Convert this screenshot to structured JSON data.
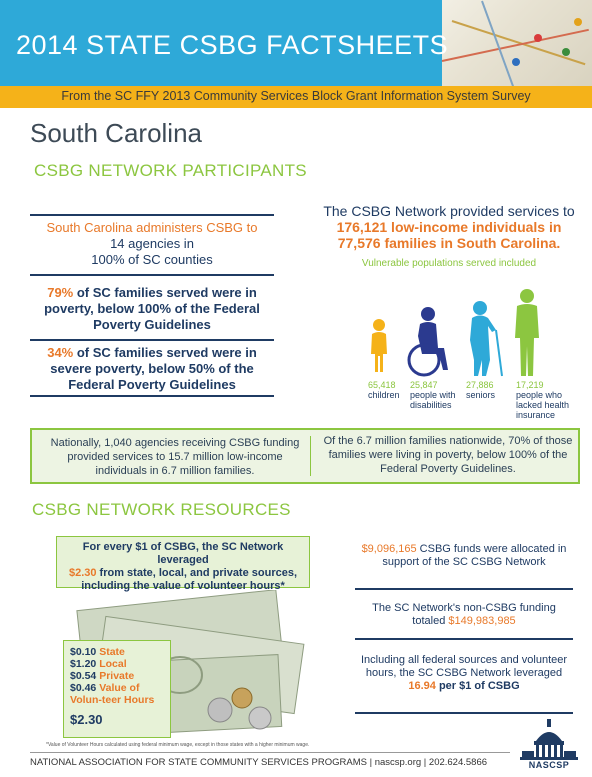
{
  "header": {
    "title": "2014 STATE CSBG FACTSHEETS",
    "subtitle": "From the SC FFY 2013 Community Services Block Grant Information System Survey",
    "colors": {
      "blue": "#2ea9d8",
      "yellow": "#f5b219",
      "green": "#8cc640",
      "orange": "#e8792a",
      "navy": "#1f3b63"
    }
  },
  "state": "South Carolina",
  "participants": {
    "heading": "CSBG NETWORK PARTICIPANTS",
    "fact1": {
      "prefix": "South Carolina administers CSBG to",
      "line2": "14 agencies in",
      "line3": "100% of SC counties"
    },
    "fact2": {
      "highlight": "79%",
      "text": " of SC families served were in poverty, below 100% of the Federal Poverty Guidelines"
    },
    "fact3": {
      "highlight": "34%",
      "text": " of SC families served were in severe poverty, below 50% of the Federal Poverty Guidelines"
    },
    "intro": {
      "line1": "The CSBG Network provided services to",
      "highlight": "176,121 low-income individuals in 77,576 families in South Carolina."
    },
    "vulnerable_label": "Vulnerable populations served included",
    "populations": [
      {
        "count": "65,418",
        "label": "children",
        "icon": "child-icon"
      },
      {
        "count": "25,847",
        "label": "people with disabilities",
        "icon": "wheelchair-icon"
      },
      {
        "count": "27,886",
        "label": "seniors",
        "icon": "senior-icon"
      },
      {
        "count": "17,219",
        "label": "people who lacked health insurance",
        "icon": "person-icon"
      }
    ]
  },
  "national": {
    "left": "Nationally, 1,040 agencies receiving CSBG funding provided services to 15.7 million low-income individuals in 6.7 million families.",
    "right": "Of the 6.7 million families nationwide, 70% of those families were living in poverty, below 100% of the Federal Poverty Guidelines."
  },
  "resources": {
    "heading": "CSBG NETWORK RESOURCES",
    "leverage": {
      "line1": "For every $1 of CSBG, the SC Network leveraged",
      "highlight": "$2.30",
      "line2": " from state, local, and private sources, including the value of volunteer hours*"
    },
    "breakdown": [
      {
        "amount": "$0.10",
        "label": "State"
      },
      {
        "amount": "$1.20",
        "label": "Local"
      },
      {
        "amount": "$0.54",
        "label": "Private"
      },
      {
        "amount": "$0.46",
        "label": "Value of Volun-teer Hours"
      }
    ],
    "total": "$2.30",
    "footnote": "*Value of Volunteer Hours calculated using federal minimum wage, except in those states with a higher minimum wage.",
    "stat1": {
      "highlight": "$9,096,165",
      "text": " CSBG funds were allocated in support of the SC CSBG Network"
    },
    "stat2": {
      "text": "The SC Network's non-CSBG funding totaled ",
      "highlight": "$149,983,985"
    },
    "stat3": {
      "text": "Including all federal sources and volunteer hours, the SC CSBG Network leveraged",
      "highlight": "16.94",
      "tail": " per $1 of CSBG"
    }
  },
  "footer": {
    "text": "NATIONAL ASSOCIATION FOR STATE COMMUNITY SERVICES PROGRAMS  |  nascsp.org  |  202.624.5866",
    "logo_text": "NASCSP"
  }
}
